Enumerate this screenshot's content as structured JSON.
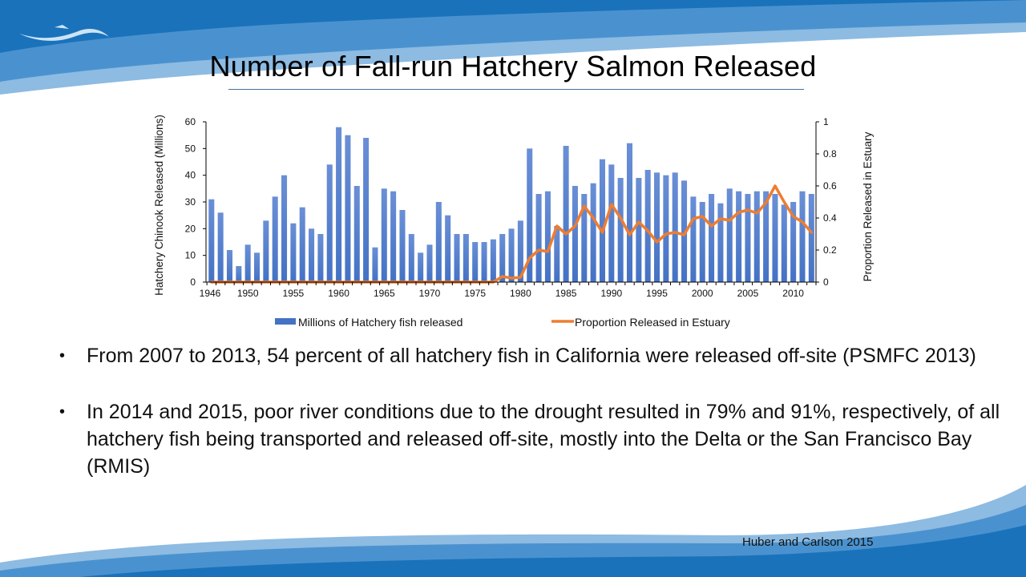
{
  "slide": {
    "title": "Number of Fall-run Hatchery Salmon Released",
    "bullets": [
      "From 2007 to 2013, 54 percent of all hatchery fish in California were released off-site (PSMFC 2013)",
      "In 2014 and 2015, poor river conditions due to the drought resulted in 79% and 91%, respectively, of all hatchery fish being transported and released off-site, mostly into the Delta or the San Francisco Bay (RMIS)"
    ],
    "bullet_glyph": "•",
    "citation": "Huber and Carlson 2015",
    "logo_icon": "fish-wave-logo-icon"
  },
  "colors": {
    "bar": "#4472c4",
    "bar_light": "#6a8fd6",
    "line": "#ed7d31",
    "header_dark": "#1a72bb",
    "header_mid": "#4a92cf",
    "header_light": "#8dbbe2",
    "title_rule": "#4a6f9a"
  },
  "chart_data": {
    "type": "bar",
    "combo": "bar + line (secondary axis)",
    "title": "",
    "xlabel": "",
    "ylabel": "Hatchery Chinook Released (Millions)",
    "y2label": "Proportion Released in Estuary",
    "ylim": [
      0,
      60
    ],
    "y2lim": [
      0,
      1
    ],
    "yticks": [
      0,
      10,
      20,
      30,
      40,
      50,
      60
    ],
    "y2ticks": [
      "0",
      "0.2",
      "0.4",
      "0.6",
      "0.8",
      "1"
    ],
    "xtick_labels": [
      "1946",
      "1950",
      "1955",
      "1960",
      "1965",
      "1970",
      "1975",
      "1980",
      "1985",
      "1990",
      "1995",
      "2000",
      "2005",
      "2010"
    ],
    "grid": false,
    "legend_position": "bottom",
    "categories": [
      1946,
      1947,
      1948,
      1949,
      1950,
      1951,
      1952,
      1953,
      1954,
      1955,
      1956,
      1957,
      1958,
      1959,
      1960,
      1961,
      1962,
      1963,
      1964,
      1965,
      1966,
      1967,
      1968,
      1969,
      1970,
      1971,
      1972,
      1973,
      1974,
      1975,
      1976,
      1977,
      1978,
      1979,
      1980,
      1981,
      1982,
      1983,
      1984,
      1985,
      1986,
      1987,
      1988,
      1989,
      1990,
      1991,
      1992,
      1993,
      1994,
      1995,
      1996,
      1997,
      1998,
      1999,
      2000,
      2001,
      2002,
      2003,
      2004,
      2005,
      2006,
      2007,
      2008,
      2009,
      2010,
      2011,
      2012
    ],
    "series": [
      {
        "name": "Millions of Hatchery fish released",
        "type": "bar",
        "axis": "left",
        "values": [
          31,
          26,
          12,
          6,
          14,
          11,
          23,
          32,
          40,
          22,
          28,
          20,
          18,
          44,
          58,
          55,
          36,
          54,
          13,
          35,
          34,
          27,
          18,
          11,
          14,
          30,
          25,
          18,
          18,
          15,
          15,
          16,
          18,
          20,
          23,
          50,
          33,
          34,
          21,
          51,
          36,
          33,
          37,
          46,
          44,
          39,
          52,
          39,
          42,
          41,
          40,
          41,
          38,
          32,
          30,
          33,
          29.5,
          35,
          34,
          33,
          34,
          34,
          33,
          29,
          30,
          34,
          33
        ]
      },
      {
        "name": "Proportion Released in Estuary",
        "type": "line",
        "axis": "right",
        "values": [
          0,
          0,
          0,
          0,
          0,
          0,
          0,
          0,
          0,
          0,
          0,
          0,
          0,
          0,
          0,
          0,
          0,
          0,
          0,
          0,
          0,
          0,
          0,
          0,
          0,
          0,
          0,
          0,
          0,
          0,
          0,
          0,
          0.035,
          0.025,
          0.03,
          0.15,
          0.2,
          0.19,
          0.35,
          0.3,
          0.35,
          0.475,
          0.4,
          0.31,
          0.485,
          0.4,
          0.295,
          0.375,
          0.32,
          0.25,
          0.3,
          0.31,
          0.295,
          0.395,
          0.41,
          0.35,
          0.395,
          0.385,
          0.435,
          0.45,
          0.43,
          0.495,
          0.6,
          0.5,
          0.41,
          0.375,
          0.31
        ]
      }
    ]
  }
}
